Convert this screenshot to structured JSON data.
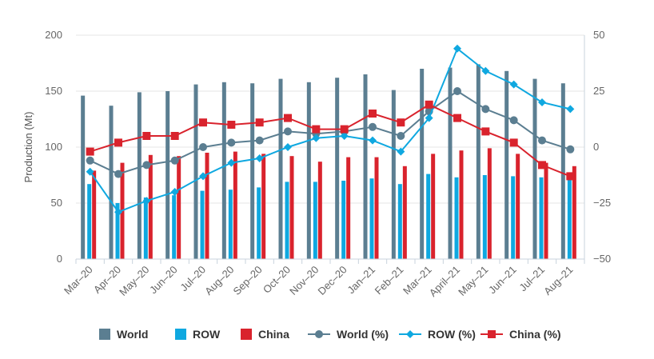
{
  "chart_data": {
    "type": "bar",
    "ylabel": "Production (Mt)",
    "ylim": [
      0,
      200
    ],
    "y2lim": [
      -50,
      50
    ],
    "yticks": [
      "0",
      "50",
      "100",
      "150",
      "200"
    ],
    "y2ticks": [
      "−50",
      "−25",
      "0",
      "25",
      "50"
    ],
    "categories": [
      "Mar–20",
      "Apr–20",
      "May–20",
      "Jun–20",
      "Jul–20",
      "Aug–20",
      "Sep–20",
      "Oct–20",
      "Nov–20",
      "Dec–20",
      "Jan–21",
      "Feb–21",
      "Mar–21",
      "April–21",
      "May–21",
      "Jun–21",
      "Jul–21",
      "Aug–21"
    ],
    "grid": "horizontal",
    "legend_position": "bottom",
    "series": [
      {
        "name": "World",
        "type": "bar",
        "axis": "left",
        "color": "#5b7e91",
        "values": [
          146,
          137,
          149,
          150,
          156,
          158,
          157,
          161,
          158,
          162,
          165,
          151,
          170,
          171,
          174,
          168,
          161,
          157
        ]
      },
      {
        "name": "ROW",
        "type": "bar",
        "axis": "left",
        "color": "#0fa8e0",
        "values": [
          67,
          50,
          55,
          57,
          61,
          62,
          64,
          69,
          69,
          70,
          72,
          67,
          76,
          73,
          75,
          74,
          73,
          72
        ]
      },
      {
        "name": "China",
        "type": "bar",
        "axis": "left",
        "color": "#d9232d",
        "values": [
          79,
          86,
          93,
          92,
          95,
          96,
          94,
          92,
          87,
          91,
          91,
          83,
          94,
          97,
          99,
          94,
          86,
          83
        ]
      },
      {
        "name": "World (%)",
        "type": "line",
        "axis": "right",
        "marker": "circle",
        "color": "#5b7e91",
        "values": [
          -6,
          -12,
          -8,
          -6,
          0,
          2,
          3,
          7,
          6,
          7,
          9,
          5,
          16,
          25,
          17,
          12,
          3,
          -1
        ]
      },
      {
        "name": "ROW (%)",
        "type": "line",
        "axis": "right",
        "marker": "diamond",
        "color": "#0fa8e0",
        "values": [
          -11,
          -29,
          -24,
          -20,
          -13,
          -7,
          -5,
          0,
          4,
          5,
          3,
          -2,
          13,
          44,
          34,
          28,
          20,
          17
        ]
      },
      {
        "name": "China (%)",
        "type": "line",
        "axis": "right",
        "marker": "square",
        "color": "#d9232d",
        "values": [
          -2,
          2,
          5,
          5,
          11,
          10,
          11,
          13,
          8,
          8,
          15,
          11,
          19,
          13,
          7,
          2,
          -8,
          -13
        ]
      }
    ]
  }
}
